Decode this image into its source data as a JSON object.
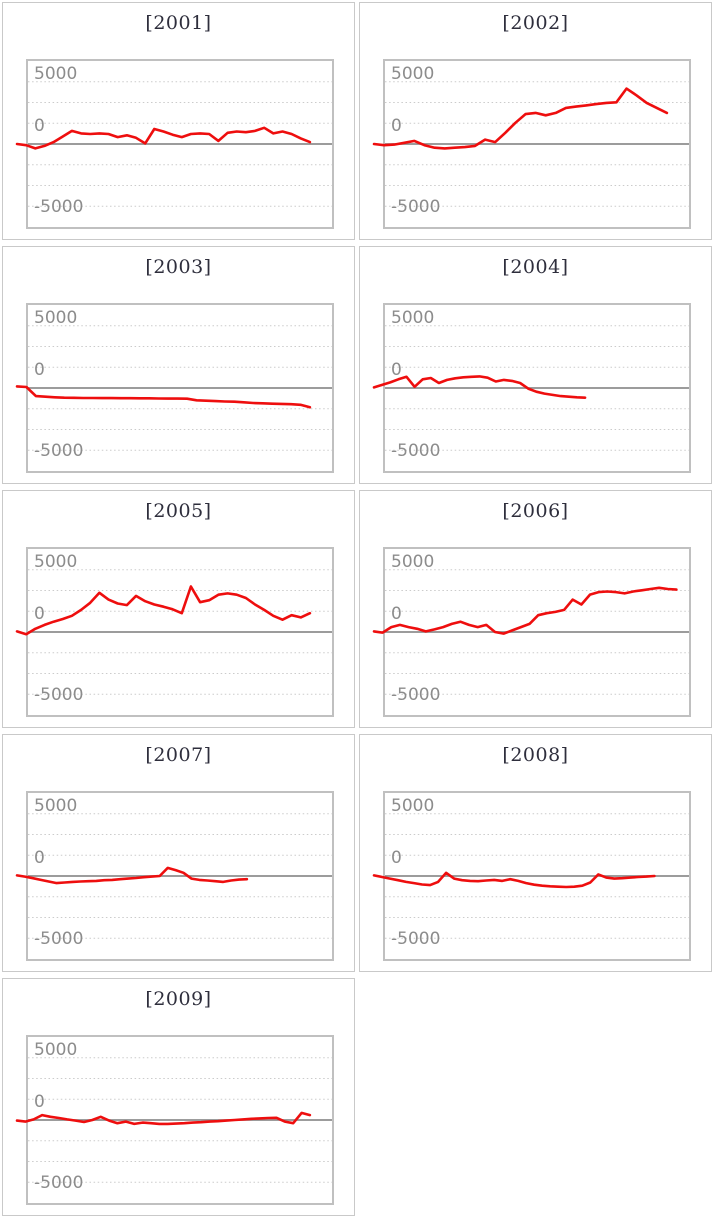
{
  "style": {
    "page_background": "#ffffff",
    "panel_border": "#c9c9c9",
    "plot_border": "#c0c0c0",
    "grid_color": "#cbcbcb",
    "zero_line_color": "#8e8e8e",
    "axis_label_color": "#8c8c8c",
    "title_color": "#2e2e3c",
    "series_color": "#ee0e0e"
  },
  "axis": {
    "yticks": [
      {
        "value": 5000,
        "label": "5000"
      },
      {
        "value": 0,
        "label": "0"
      },
      {
        "value": -5000,
        "label": "-5000"
      }
    ],
    "gridline_values": [
      5000,
      3333,
      1667,
      0,
      -1667,
      -3333,
      -5000
    ],
    "ylim": [
      -6700,
      6700
    ],
    "grid": "horizontal-dotted",
    "x_axis_labels": "none",
    "legend": "none"
  },
  "chart_data": [
    {
      "type": "line",
      "title": "[2001]",
      "end_frac": 0.93,
      "values": [
        0,
        -100,
        -350,
        -150,
        150,
        600,
        1050,
        850,
        800,
        850,
        800,
        550,
        700,
        500,
        50,
        1200,
        1000,
        750,
        550,
        800,
        850,
        800,
        250,
        900,
        1000,
        950,
        1050,
        1300,
        850,
        1000,
        800,
        450,
        150
      ]
    },
    {
      "type": "line",
      "title": "[2002]",
      "end_frac": 0.93,
      "values": [
        0,
        -100,
        -50,
        100,
        250,
        -100,
        -300,
        -350,
        -300,
        -250,
        -150,
        350,
        150,
        900,
        1700,
        2400,
        2500,
        2300,
        2500,
        2900,
        3000,
        3100,
        3200,
        3300,
        3350,
        4450,
        3900,
        3300,
        2900,
        2500
      ]
    },
    {
      "type": "line",
      "title": "[2003]",
      "end_frac": 0.93,
      "values": [
        130,
        80,
        -650,
        -700,
        -750,
        -780,
        -790,
        -800,
        -800,
        -810,
        -810,
        -820,
        -820,
        -830,
        -830,
        -840,
        -850,
        -850,
        -860,
        -990,
        -1020,
        -1050,
        -1080,
        -1100,
        -1150,
        -1200,
        -1230,
        -1260,
        -1280,
        -1300,
        -1350,
        -1550
      ]
    },
    {
      "type": "line",
      "title": "[2004]",
      "end_frac": 0.67,
      "values": [
        50,
        250,
        450,
        700,
        900,
        100,
        700,
        800,
        400,
        650,
        780,
        860,
        900,
        930,
        830,
        520,
        650,
        570,
        400,
        -50,
        -300,
        -450,
        -550,
        -650,
        -700,
        -750,
        -780
      ]
    },
    {
      "type": "line",
      "title": "[2005]",
      "end_frac": 0.93,
      "values": [
        50,
        -180,
        260,
        570,
        830,
        1040,
        1300,
        1770,
        2340,
        3150,
        2600,
        2290,
        2160,
        2900,
        2470,
        2210,
        2030,
        1820,
        1510,
        3650,
        2390,
        2550,
        2990,
        3100,
        2990,
        2730,
        2210,
        1770,
        1300,
        990,
        1350,
        1170,
        1510
      ]
    },
    {
      "type": "line",
      "title": "[2006]",
      "end_frac": 0.96,
      "values": [
        50,
        -50,
        390,
        570,
        390,
        260,
        50,
        210,
        390,
        650,
        830,
        570,
        390,
        570,
        0,
        -130,
        130,
        390,
        650,
        1350,
        1510,
        1610,
        1770,
        2600,
        2210,
        3000,
        3200,
        3250,
        3200,
        3100,
        3250,
        3350,
        3450,
        3550,
        3450,
        3400
      ]
    },
    {
      "type": "line",
      "title": "[2007]",
      "end_frac": 0.73,
      "values": [
        50,
        -50,
        -180,
        -310,
        -440,
        -570,
        -520,
        -470,
        -440,
        -420,
        -390,
        -340,
        -310,
        -260,
        -210,
        -160,
        -100,
        -50,
        0,
        650,
        470,
        260,
        -210,
        -310,
        -360,
        -420,
        -470,
        -360,
        -290,
        -260
      ]
    },
    {
      "type": "line",
      "title": "[2008]",
      "end_frac": 0.89,
      "values": [
        50,
        -80,
        -210,
        -340,
        -470,
        -570,
        -680,
        -730,
        -470,
        260,
        -210,
        -340,
        -390,
        -420,
        -360,
        -310,
        -390,
        -260,
        -390,
        -570,
        -700,
        -780,
        -830,
        -860,
        -880,
        -860,
        -780,
        -520,
        130,
        -130,
        -210,
        -180,
        -130,
        -80,
        -50,
        0
      ]
    },
    {
      "type": "line",
      "title": "[2009]",
      "end_frac": 0.93,
      "values": [
        -50,
        -130,
        50,
        390,
        260,
        160,
        50,
        -50,
        -160,
        0,
        260,
        -50,
        -260,
        -130,
        -310,
        -210,
        -260,
        -310,
        -310,
        -290,
        -260,
        -210,
        -180,
        -130,
        -100,
        -50,
        0,
        50,
        100,
        130,
        160,
        180,
        -130,
        -260,
        570,
        390
      ]
    }
  ]
}
